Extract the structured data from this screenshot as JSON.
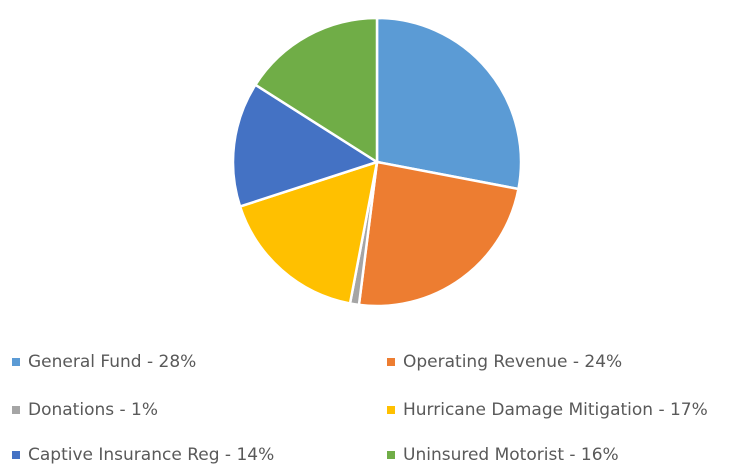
{
  "chart_data": {
    "type": "pie",
    "categories": [
      "General Fund - 28%",
      "Operating Revenue - 24%",
      "Donations - 1%",
      "Hurricane Damage Mitigation - 17%",
      "Captive Insurance Reg - 14%",
      "Uninsured Motorist - 16%"
    ],
    "values": [
      28,
      24,
      1,
      17,
      14,
      16
    ],
    "colors": [
      "#5b9bd5",
      "#ed7d31",
      "#a5a5a5",
      "#ffc000",
      "#4472c4",
      "#70ad47"
    ],
    "legend": "bottom"
  }
}
